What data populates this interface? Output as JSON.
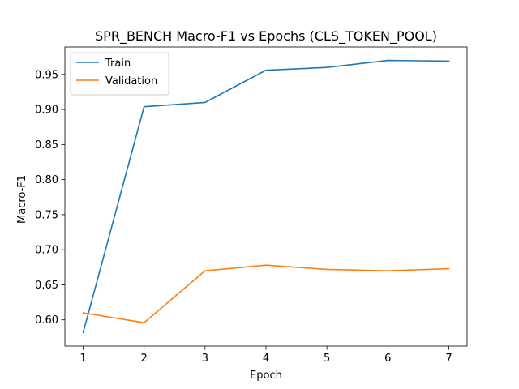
{
  "chart_data": {
    "type": "line",
    "title": "SPR_BENCH Macro-F1 vs Epochs (CLS_TOKEN_POOL)",
    "xlabel": "Epoch",
    "ylabel": "Macro-F1",
    "x": [
      1,
      2,
      3,
      4,
      5,
      6,
      7
    ],
    "x_tick_labels": [
      "1",
      "2",
      "3",
      "4",
      "5",
      "6",
      "7"
    ],
    "y_tick_values": [
      0.6,
      0.65,
      0.7,
      0.75,
      0.8,
      0.85,
      0.9,
      0.95
    ],
    "y_tick_labels": [
      "0.60",
      "0.65",
      "0.70",
      "0.75",
      "0.80",
      "0.85",
      "0.90",
      "0.95"
    ],
    "xlim": [
      0.7,
      7.3
    ],
    "ylim": [
      0.5627,
      0.9891
    ],
    "grid": false,
    "legend_position": "top-left",
    "series": [
      {
        "name": "Train",
        "color": "#1f77b4",
        "values": [
          0.582,
          0.904,
          0.91,
          0.956,
          0.96,
          0.97,
          0.969
        ]
      },
      {
        "name": "Validation",
        "color": "#ff7f0e",
        "values": [
          0.61,
          0.596,
          0.67,
          0.678,
          0.672,
          0.67,
          0.673
        ]
      }
    ]
  }
}
